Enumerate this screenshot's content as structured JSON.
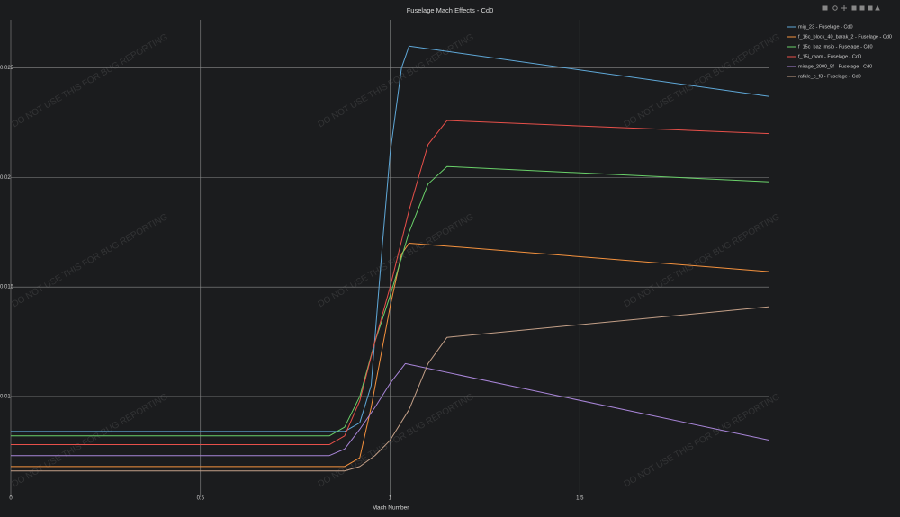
{
  "chart_data": {
    "type": "line",
    "title": "Fuselage Mach Effects - Cd0",
    "x_label": "Mach Number",
    "watermark": "DO NOT USE THIS FOR BUG REPORTING",
    "xlim": [
      0,
      2
    ],
    "xticks": [
      0,
      0.5,
      1,
      1.5
    ],
    "ylim": [
      0.0054,
      0.0272
    ],
    "yticks": [
      0.01,
      0.015,
      0.02,
      0.025
    ],
    "grid": true,
    "legend": "right",
    "series": [
      {
        "name": "mig_23 - Fuselage - Cd0",
        "color": "#5fa8d8",
        "x": [
          0,
          0.88,
          0.92,
          0.95,
          0.98,
          1.0,
          1.03,
          1.05,
          2.0
        ],
        "values": [
          0.0084,
          0.0084,
          0.0088,
          0.0105,
          0.017,
          0.0211,
          0.025,
          0.026,
          0.0237
        ]
      },
      {
        "name": "f_16c_block_40_barak_2 - Fuselage - Cd0",
        "color": "#f5923e",
        "x": [
          0,
          0.88,
          0.92,
          0.95,
          1.0,
          1.03,
          1.05,
          2.0
        ],
        "values": [
          0.0068,
          0.0068,
          0.0072,
          0.0095,
          0.0141,
          0.0165,
          0.017,
          0.0157
        ]
      },
      {
        "name": "f_15c_baz_msip - Fuselage - Cd0",
        "color": "#6ad16a",
        "x": [
          0,
          0.84,
          0.88,
          0.92,
          0.96,
          1.0,
          1.05,
          1.1,
          1.15,
          2.0
        ],
        "values": [
          0.0082,
          0.0082,
          0.0086,
          0.01,
          0.0125,
          0.0146,
          0.0175,
          0.0197,
          0.0205,
          0.0198
        ]
      },
      {
        "name": "f_15i_raam - Fuselage - Cd0",
        "color": "#e8504a",
        "x": [
          0,
          0.84,
          0.88,
          0.92,
          0.96,
          1.0,
          1.05,
          1.1,
          1.15,
          2.0
        ],
        "values": [
          0.0078,
          0.0078,
          0.0082,
          0.0098,
          0.0125,
          0.015,
          0.0185,
          0.0215,
          0.0226,
          0.022
        ]
      },
      {
        "name": "mirage_2000_5f - Fuselage - Cd0",
        "color": "#a885d8",
        "x": [
          0,
          0.84,
          0.88,
          0.92,
          0.96,
          1.0,
          1.04,
          2.0
        ],
        "values": [
          0.0073,
          0.0073,
          0.0076,
          0.0085,
          0.0095,
          0.0106,
          0.0115,
          0.008
        ]
      },
      {
        "name": "rafale_c_f3 - Fuselage - Cd0",
        "color": "#c4a088",
        "x": [
          0,
          0.88,
          0.92,
          0.96,
          1.0,
          1.05,
          1.1,
          1.15,
          2.0
        ],
        "values": [
          0.0066,
          0.0066,
          0.0068,
          0.0073,
          0.008,
          0.0094,
          0.0115,
          0.0127,
          0.0141
        ]
      }
    ]
  }
}
